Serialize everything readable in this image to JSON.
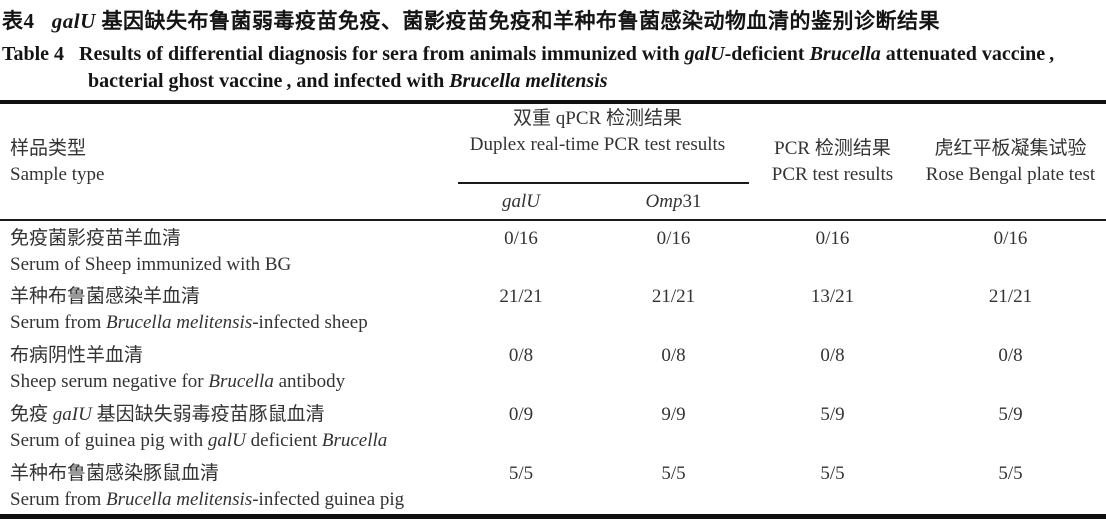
{
  "colors": {
    "text": "#2e2e2e",
    "title_text": "#141414",
    "rule": "#101010",
    "background": "#ffffff"
  },
  "title": {
    "line1_zh": [
      {
        "t": "表4   "
      },
      {
        "t": "galU",
        "i": true
      },
      {
        "t": " 基因缺失布鲁菌弱毒疫苗免疫、菌影疫苗免疫和羊种布鲁菌感染动物血清的鉴别诊断结果"
      }
    ],
    "line2_en": [
      {
        "t": "Table 4   Results of differential diagnosis for sera from animals immunized with "
      },
      {
        "t": "galU",
        "i": true
      },
      {
        "t": "-deficient "
      },
      {
        "t": "Brucella",
        "i": true
      },
      {
        "t": " attenuated vaccine ,"
      }
    ],
    "line3_en": [
      {
        "t": "bacterial ghost vaccine , and infected with "
      },
      {
        "t": "Brucella melitensis",
        "i": true
      }
    ]
  },
  "table": {
    "header": {
      "sample_zh": "样品类型",
      "sample_en": "Sample type",
      "duplex_zh": "双重 qPCR 检测结果",
      "duplex_en": "Duplex real-time PCR test results",
      "sub_galu": [
        {
          "t": "galU",
          "i": true
        }
      ],
      "sub_omp31": [
        {
          "t": "Omp",
          "i": true
        },
        {
          "t": "31"
        }
      ],
      "pcr_zh": "PCR 检测结果",
      "pcr_en": "PCR test results",
      "rbt_zh": "虎红平板凝集试验",
      "rbt_en": "Rose Bengal plate test"
    },
    "rows": [
      {
        "zh": [
          {
            "t": "免疫菌影疫苗羊血清"
          }
        ],
        "en": [
          {
            "t": "Serum of Sheep immunized with BG"
          }
        ],
        "values": [
          "0/16",
          "0/16",
          "0/16",
          "0/16"
        ]
      },
      {
        "zh": [
          {
            "t": "羊种布鲁菌感染羊血清"
          }
        ],
        "en": [
          {
            "t": "Serum from "
          },
          {
            "t": "Brucella melitensis",
            "i": true
          },
          {
            "t": "-infected sheep"
          }
        ],
        "values": [
          "21/21",
          "21/21",
          "13/21",
          "21/21"
        ]
      },
      {
        "zh": [
          {
            "t": "布病阴性羊血清"
          }
        ],
        "en": [
          {
            "t": "Sheep serum negative for "
          },
          {
            "t": "Brucella",
            "i": true
          },
          {
            "t": " antibody"
          }
        ],
        "values": [
          "0/8",
          "0/8",
          "0/8",
          "0/8"
        ]
      },
      {
        "zh": [
          {
            "t": "免疫 "
          },
          {
            "t": "gaIU",
            "i": true
          },
          {
            "t": " 基因缺失弱毒疫苗豚鼠血清"
          }
        ],
        "en": [
          {
            "t": "Serum of guinea pig with "
          },
          {
            "t": "galU",
            "i": true
          },
          {
            "t": " deficient "
          },
          {
            "t": "Brucella",
            "i": true
          }
        ],
        "values": [
          "0/9",
          "9/9",
          "5/9",
          "5/9"
        ]
      },
      {
        "zh": [
          {
            "t": "羊种布鲁菌感染豚鼠血清"
          }
        ],
        "en": [
          {
            "t": "Serum from "
          },
          {
            "t": "Brucella melitensis",
            "i": true
          },
          {
            "t": "-infected guinea pig"
          }
        ],
        "values": [
          "5/5",
          "5/5",
          "5/5",
          "5/5"
        ]
      }
    ]
  }
}
